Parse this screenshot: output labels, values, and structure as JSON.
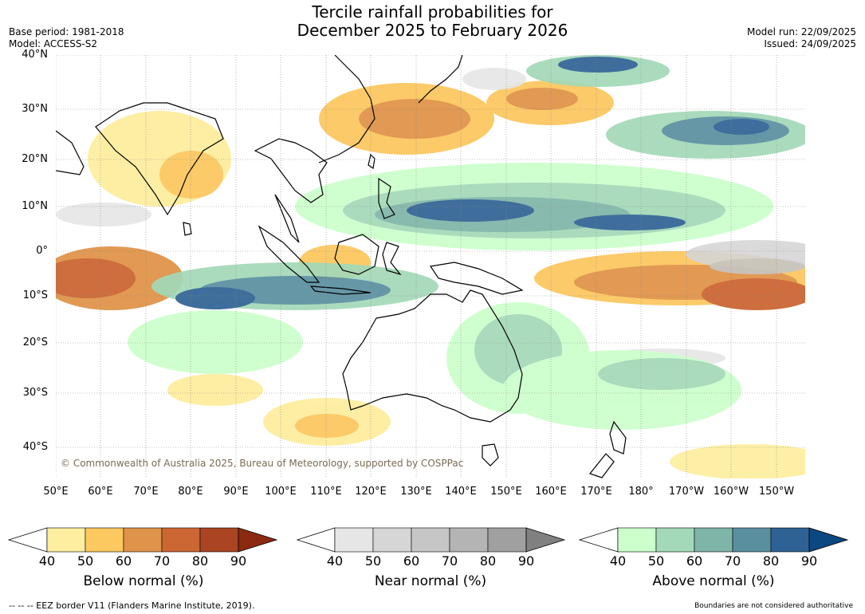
{
  "title": {
    "line1": "Tercile rainfall probabilities for",
    "line2": "December 2025 to February 2026"
  },
  "meta_left": {
    "base_period": "Base period: 1981-2018",
    "model": "Model: ACCESS-S2"
  },
  "meta_right": {
    "model_run": "Model run: 22/09/2025",
    "issued": "Issued: 24/09/2025"
  },
  "lat_labels": [
    "40°N",
    "30°N",
    "20°N",
    "10°N",
    "0°",
    "10°S",
    "20°S",
    "30°S",
    "40°S"
  ],
  "lon_labels": [
    "50°E",
    "60°E",
    "70°E",
    "80°E",
    "90°E",
    "100°E",
    "110°E",
    "120°E",
    "130°E",
    "140°E",
    "150°E",
    "160°E",
    "170°E",
    "180°",
    "170°W",
    "160°W",
    "150°W"
  ],
  "copyright": "© Commonwealth of Australia 2025, Bureau of Meteorology, supported by COSPPac",
  "colorbars": [
    {
      "name": "below",
      "title": "Below normal (%)",
      "ticks": [
        "40",
        "50",
        "60",
        "70",
        "80",
        "90"
      ],
      "colors": [
        "#ffffff",
        "#fdeea0",
        "#fcc860",
        "#e0944a",
        "#cc6633",
        "#aa4422",
        "#8b2a10"
      ]
    },
    {
      "name": "near",
      "title": "Near normal (%)",
      "ticks": [
        "40",
        "50",
        "60",
        "70",
        "80",
        "90"
      ],
      "colors": [
        "#ffffff",
        "#e6e6e6",
        "#d6d6d6",
        "#c6c6c6",
        "#b4b4b4",
        "#a0a0a0",
        "#808080"
      ]
    },
    {
      "name": "above",
      "title": "Above normal (%)",
      "ticks": [
        "40",
        "50",
        "60",
        "70",
        "80",
        "90"
      ],
      "colors": [
        "#ffffff",
        "#ccffcc",
        "#a3d9b8",
        "#7fb5a8",
        "#5a8fa0",
        "#2f6294",
        "#0b4780"
      ]
    }
  ],
  "footer_left": "--  --  -- EEZ border V11 (Flanders Marine Institute, 2019).",
  "footer_right": "Boundaries are not considered authoritative"
}
